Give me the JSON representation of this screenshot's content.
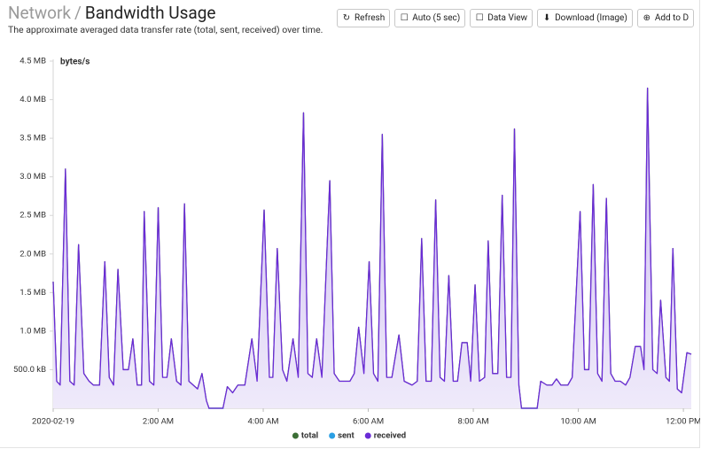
{
  "header": {
    "section": "Network",
    "separator": "/",
    "title": "Bandwidth Usage",
    "subtitle": "The approximate averaged data transfer rate (total, sent, received) over time."
  },
  "buttons": [
    "Refresh",
    "Auto (5 sec)",
    "Data View",
    "Download (Image)",
    "Add to D"
  ],
  "chart_data": {
    "type": "area",
    "y_label": "bytes/s",
    "x": [
      0,
      4,
      8,
      14,
      19,
      24,
      29,
      35,
      41,
      46,
      53,
      59,
      64,
      69,
      74,
      80,
      86,
      91,
      96,
      101,
      104,
      110,
      115,
      120,
      125,
      130,
      135,
      141,
      146,
      150,
      155,
      160,
      165,
      170,
      175,
      178,
      194,
      199,
      205,
      211,
      219,
      227,
      233,
      241,
      247,
      251,
      256,
      262,
      267,
      274,
      280,
      286,
      291,
      296,
      301,
      307,
      316,
      321,
      327,
      339,
      344,
      349,
      355,
      361,
      366,
      371,
      376,
      381,
      387,
      395,
      401,
      410,
      416,
      421,
      426,
      432,
      437,
      442,
      447,
      452,
      457,
      462,
      467,
      473,
      477,
      482,
      487,
      493,
      497,
      502,
      508,
      513,
      518,
      523,
      527,
      532,
      535,
      553,
      557,
      564,
      570,
      575,
      580,
      588,
      593,
      602,
      607,
      612,
      617,
      622,
      627,
      632,
      637,
      642,
      648,
      654,
      659,
      665,
      671,
      675,
      679,
      685,
      690,
      694,
      700,
      704,
      708,
      713,
      718,
      724,
      729
    ],
    "xlim": [
      0,
      729
    ],
    "xticks": [
      {
        "value": 0,
        "label": "2020-02-19"
      },
      {
        "value": 120,
        "label": "2:00 AM"
      },
      {
        "value": 240,
        "label": "4:00 AM"
      },
      {
        "value": 360,
        "label": "6:00 AM"
      },
      {
        "value": 480,
        "label": "8:00 AM"
      },
      {
        "value": 600,
        "label": "10:00 AM"
      },
      {
        "value": 720,
        "label": "12:00 PM"
      }
    ],
    "ylim": [
      0,
      4.5
    ],
    "yticks": [
      {
        "value": 0.5,
        "label": "500.0 kB"
      },
      {
        "value": 1,
        "label": "1.0 MB"
      },
      {
        "value": 1.5,
        "label": "1.5 MB"
      },
      {
        "value": 2,
        "label": "2.0 MB"
      },
      {
        "value": 2.5,
        "label": "2.5 MB"
      },
      {
        "value": 3,
        "label": "3.0 MB"
      },
      {
        "value": 3.5,
        "label": "3.5 MB"
      },
      {
        "value": 4,
        "label": "4.0 MB"
      },
      {
        "value": 4.5,
        "label": "4.5 MB"
      }
    ],
    "grid": false,
    "legend": "bottom",
    "series": [
      {
        "name": "total",
        "color": "#3b6e35",
        "values": [
          1.64,
          0.35,
          0.3,
          3.1,
          0.35,
          0.3,
          2.12,
          0.45,
          0.35,
          0.3,
          0.3,
          1.9,
          0.4,
          0.3,
          1.8,
          0.5,
          0.5,
          0.9,
          0.3,
          0.3,
          2.55,
          0.35,
          0.3,
          2.6,
          0.4,
          0.4,
          0.9,
          0.35,
          0.3,
          2.65,
          0.35,
          0.3,
          0.25,
          0.45,
          0.1,
          0,
          0,
          0.28,
          0.2,
          0.3,
          0.3,
          0.9,
          0.35,
          2.57,
          0.4,
          0.4,
          2.07,
          0.5,
          0.35,
          0.9,
          0.4,
          3.83,
          0.45,
          0.4,
          0.9,
          0.4,
          2.95,
          0.45,
          0.35,
          0.35,
          0.45,
          1.05,
          0.45,
          1.9,
          0.45,
          0.35,
          3.55,
          0.4,
          0.4,
          0.95,
          0.35,
          0.3,
          0.35,
          2.2,
          0.35,
          0.35,
          2.7,
          0.4,
          0.35,
          1.72,
          0.35,
          0.35,
          0.85,
          0.85,
          0.35,
          1.6,
          0.35,
          0.4,
          2.17,
          0.45,
          0.45,
          2.76,
          0.4,
          0.4,
          3.62,
          0.3,
          0,
          0,
          0.35,
          0.3,
          0.3,
          0.38,
          0.3,
          0.3,
          0.4,
          2.55,
          0.5,
          0.5,
          2.9,
          0.45,
          0.35,
          2.72,
          0.45,
          0.35,
          0.35,
          0.3,
          0.4,
          0.8,
          0.8,
          0.5,
          4.15,
          0.5,
          0.45,
          1.4,
          0.4,
          0.35,
          2.07,
          0.25,
          0.2,
          0.72,
          0.7
        ]
      },
      {
        "name": "sent",
        "color": "#2a9fe4",
        "values": [
          0.02,
          0.02,
          0.02,
          0.02,
          0.02,
          0.02,
          0.02,
          0.02,
          0.02,
          0.02,
          0.02,
          0.02,
          0.02,
          0.02,
          0.02,
          0.02,
          0.02,
          0.02,
          0.02,
          0.02,
          0.02,
          0.02,
          0.02,
          0.02,
          0.02,
          0.02,
          0.02,
          0.02,
          0.02,
          0.02,
          0.02,
          0.02,
          0.02,
          0.02,
          0.02,
          0,
          0,
          0.02,
          0.02,
          0.02,
          0.02,
          0.02,
          0.02,
          0.02,
          0.02,
          0.02,
          0.02,
          0.02,
          0.02,
          0.02,
          0.02,
          0.02,
          0.02,
          0.02,
          0.02,
          0.02,
          0.02,
          0.02,
          0.02,
          0.02,
          0.02,
          0.02,
          0.02,
          0.02,
          0.02,
          0.02,
          0.02,
          0.02,
          0.02,
          0.02,
          0.02,
          0.02,
          0.02,
          0.02,
          0.02,
          0.02,
          0.02,
          0.02,
          0.02,
          0.02,
          0.02,
          0.02,
          0.02,
          0.02,
          0.02,
          0.02,
          0.02,
          0.02,
          0.02,
          0.02,
          0.02,
          0.02,
          0.02,
          0.02,
          0.02,
          0.02,
          0,
          0,
          0.02,
          0.02,
          0.02,
          0.02,
          0.02,
          0.02,
          0.02,
          0.02,
          0.02,
          0.02,
          0.02,
          0.02,
          0.02,
          0.02,
          0.02,
          0.02,
          0.02,
          0.02,
          0.02,
          0.02,
          0.02,
          0.02,
          0.02,
          0.02,
          0.02,
          0.02,
          0.02,
          0.02,
          0.02,
          0.02,
          0.02,
          0.02,
          0.02
        ]
      },
      {
        "name": "received",
        "color": "#6a2bd6",
        "values": [
          1.64,
          0.35,
          0.3,
          3.1,
          0.35,
          0.3,
          2.12,
          0.45,
          0.35,
          0.3,
          0.3,
          1.9,
          0.4,
          0.3,
          1.8,
          0.5,
          0.5,
          0.9,
          0.3,
          0.3,
          2.55,
          0.35,
          0.3,
          2.6,
          0.4,
          0.4,
          0.9,
          0.35,
          0.3,
          2.65,
          0.35,
          0.3,
          0.25,
          0.45,
          0.1,
          0,
          0,
          0.28,
          0.2,
          0.3,
          0.3,
          0.9,
          0.35,
          2.57,
          0.4,
          0.4,
          2.07,
          0.5,
          0.35,
          0.9,
          0.4,
          3.83,
          0.45,
          0.4,
          0.9,
          0.4,
          2.95,
          0.45,
          0.35,
          0.35,
          0.45,
          1.05,
          0.45,
          1.9,
          0.45,
          0.35,
          3.55,
          0.4,
          0.4,
          0.95,
          0.35,
          0.3,
          0.35,
          2.2,
          0.35,
          0.35,
          2.7,
          0.4,
          0.35,
          1.72,
          0.35,
          0.35,
          0.85,
          0.85,
          0.35,
          1.6,
          0.35,
          0.4,
          2.17,
          0.45,
          0.45,
          2.76,
          0.4,
          0.4,
          3.62,
          0.3,
          0,
          0,
          0.35,
          0.3,
          0.3,
          0.38,
          0.3,
          0.3,
          0.4,
          2.55,
          0.5,
          0.5,
          2.9,
          0.45,
          0.35,
          2.72,
          0.45,
          0.35,
          0.35,
          0.3,
          0.4,
          0.8,
          0.8,
          0.5,
          4.15,
          0.5,
          0.45,
          1.4,
          0.4,
          0.35,
          2.07,
          0.25,
          0.2,
          0.72,
          0.7
        ]
      }
    ]
  }
}
